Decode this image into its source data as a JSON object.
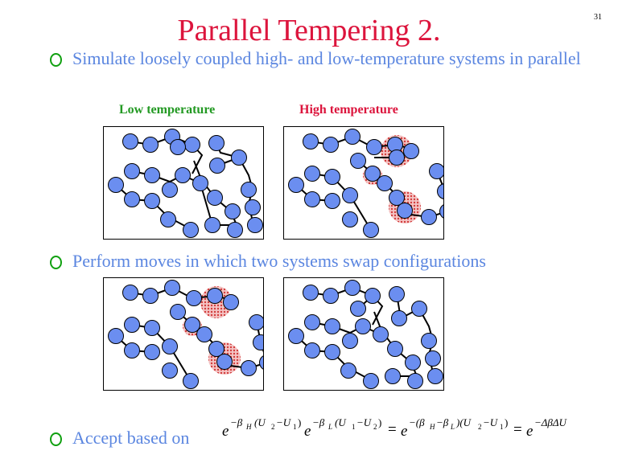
{
  "slide": {
    "title": "Parallel Tempering 2.",
    "page_number": "31"
  },
  "bullets": [
    {
      "text": "Simulate loosely coupled high- and low-temperature systems in parallel"
    },
    {
      "text": "Perform moves in which two systems swap configurations"
    },
    {
      "text": "Accept based on"
    }
  ],
  "labels": {
    "low": "Low temperature",
    "high": "High temperature"
  },
  "colors": {
    "title": "#dc143c",
    "bullet_text": "#5b86e0",
    "bullet_marker": "#10a010",
    "low_label": "#229922",
    "high_label": "#dc143c",
    "bead": "#6b8ef0",
    "highlight": "#d23c3c"
  },
  "formula": {
    "e": "e",
    "exp1": "−β",
    "sub_H": "H",
    "exp1b": "(U",
    "sub_2": "2",
    "minus_u": "−U",
    "sub_1": "1",
    "close": ")",
    "exp2": "−β",
    "sub_L": "L",
    "exp2b": "(U",
    "eq": "=",
    "exp3": "−(β",
    "exp3m": "−β",
    "exp3c": ")(U",
    "exp4": "−ΔβΔU"
  }
}
